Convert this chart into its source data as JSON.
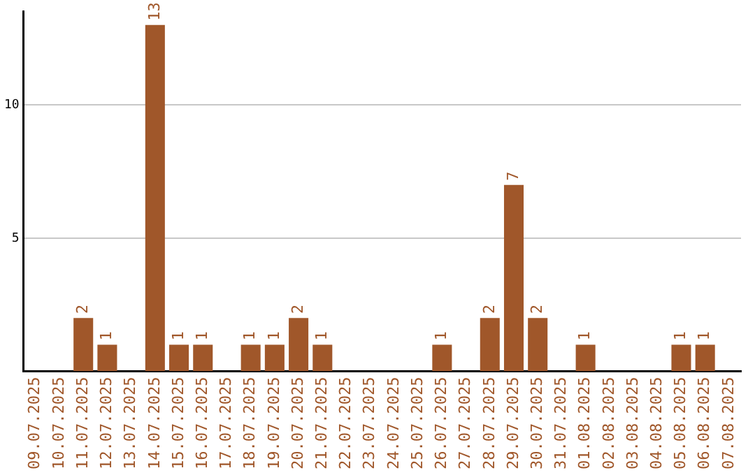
{
  "chart_data": {
    "type": "bar",
    "categories": [
      "09.07.2025",
      "10.07.2025",
      "11.07.2025",
      "12.07.2025",
      "13.07.2025",
      "14.07.2025",
      "15.07.2025",
      "16.07.2025",
      "17.07.2025",
      "18.07.2025",
      "19.07.2025",
      "20.07.2025",
      "21.07.2025",
      "22.07.2025",
      "23.07.2025",
      "24.07.2025",
      "25.07.2025",
      "26.07.2025",
      "27.07.2025",
      "28.07.2025",
      "29.07.2025",
      "30.07.2025",
      "31.07.2025",
      "01.08.2025",
      "02.08.2025",
      "03.08.2025",
      "04.08.2025",
      "05.08.2025",
      "06.08.2025",
      "07.08.2025"
    ],
    "values": [
      0,
      0,
      2,
      1,
      0,
      13,
      1,
      1,
      0,
      1,
      1,
      2,
      1,
      0,
      0,
      0,
      0,
      1,
      0,
      2,
      7,
      2,
      0,
      1,
      0,
      0,
      0,
      1,
      1,
      0
    ],
    "value_labels": [
      null,
      null,
      "2",
      "1",
      null,
      "13",
      "1",
      "1",
      null,
      "1",
      "1",
      "2",
      "1",
      null,
      null,
      null,
      null,
      "1",
      null,
      "2",
      "7",
      "2",
      null,
      "1",
      null,
      null,
      null,
      "1",
      "1",
      null
    ],
    "color": "#a0572a",
    "ylim": [
      0,
      13.5
    ],
    "yticks": [
      5,
      10
    ],
    "grid": "y",
    "legend": false
  }
}
